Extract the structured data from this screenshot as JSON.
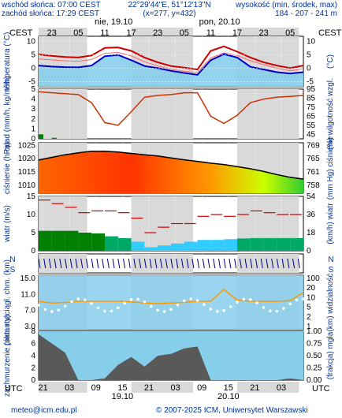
{
  "header": {
    "sunrise": "wschód słońca: 07:00 CEST",
    "sunset": "zachód słońca: 17:29 CEST",
    "coords": "22°29'44\"E, 51°12'13\"N",
    "grid": "(x=277, y=432)",
    "height_title": "wysokość (min, środek, max)",
    "height_values": "184 - 207 - 241 m"
  },
  "timezone_top": "CEST",
  "timezone_bottom": "UTC",
  "days_top": [
    "nie, 19.10",
    "pon, 20.10"
  ],
  "hours_top": [
    "23",
    "05",
    "11",
    "17",
    "23",
    "05",
    "11",
    "17",
    "23",
    "05"
  ],
  "hours_bottom": [
    "21",
    "03",
    "09",
    "15",
    "21",
    "03",
    "09",
    "15",
    "21",
    "03"
  ],
  "days_bottom": [
    "19.10",
    "20.10"
  ],
  "footer": {
    "email": "meteo@icm.edu.pl",
    "copyright": "© 2007-2025 ICM, Uniwersytet Warszawski"
  },
  "colors": {
    "axis_blue": "#003399",
    "sky": "#87ceeb",
    "temp_red": "#cc0000",
    "humidity": "#cc3300",
    "wind_green": "#008000"
  },
  "chart_data": [
    {
      "type": "line",
      "ylabel": "temperatura (°C)",
      "ylabel_right": "(°C)",
      "yticks": [
        "10",
        "5",
        "0",
        "-5"
      ],
      "ylim": [
        -7,
        12
      ],
      "x": [
        0,
        3,
        6,
        9,
        12,
        15,
        18,
        21,
        24,
        27,
        30,
        33,
        36,
        39,
        42,
        45,
        48,
        51,
        54,
        57,
        60
      ],
      "series": [
        {
          "values": [
            5.2,
            4.6,
            4.2,
            4.0,
            4.8,
            7.6,
            7.8,
            6.5,
            4.0,
            2.2,
            0.8,
            0.2,
            -0.5,
            6.5,
            8.2,
            6.2,
            4.0,
            2.2,
            1.0,
            0.0,
            1.0
          ]
        },
        {
          "values": [
            3.5,
            3.1,
            2.8,
            2.6,
            3.3,
            5.6,
            5.9,
            4.6,
            2.4,
            0.8,
            -0.4,
            -1.2,
            -1.6,
            3.8,
            5.8,
            4.8,
            2.8,
            1.3,
            0.0,
            -1.0,
            -0.2
          ]
        },
        {
          "values": [
            1.0,
            0.6,
            0.4,
            0.3,
            1.0,
            4.5,
            5.0,
            3.0,
            0.8,
            0.0,
            -1.0,
            -1.8,
            -2.5,
            3.0,
            5.3,
            4.0,
            0.5,
            -0.5,
            -1.5,
            -2.0,
            -1.5
          ]
        }
      ]
    },
    {
      "type": "line",
      "ylabel": "opad (mm/h, kg/m²/h)",
      "ylabel_right": "(%) wilgotność wzgl.",
      "yticks": [
        "5",
        "4",
        "3",
        "2",
        "1",
        "0"
      ],
      "yticks_right": [
        "95",
        "85",
        "75",
        "65",
        "55",
        "45"
      ],
      "ylim": [
        0,
        5
      ],
      "ylim_right": [
        40,
        95
      ],
      "x": [
        0,
        3,
        6,
        9,
        12,
        15,
        18,
        21,
        24,
        27,
        30,
        33,
        36,
        39,
        42,
        45,
        48,
        51,
        54,
        57,
        60
      ],
      "series": [
        {
          "name": "precipitation",
          "values": [
            0.45,
            0.1,
            0,
            0,
            0,
            0,
            0,
            0,
            0,
            0,
            0,
            0,
            0,
            0,
            0,
            0,
            0,
            0,
            0,
            0,
            0
          ]
        },
        {
          "name": "humidity",
          "values": [
            92,
            91,
            90,
            89,
            80,
            58,
            55,
            70,
            86,
            88,
            89,
            91,
            91,
            65,
            57,
            66,
            80,
            84,
            86,
            87,
            88
          ]
        }
      ]
    },
    {
      "type": "line",
      "ylabel": "ciśnienie (hPa)",
      "ylabel_right": "(mm Hg) ciśnienie",
      "yticks": [
        "1025",
        "1020",
        "1015",
        "1010"
      ],
      "yticks_right": [
        "769",
        "765",
        "761",
        "758"
      ],
      "ylim": [
        1007,
        1026
      ],
      "x": [
        0,
        3,
        6,
        9,
        12,
        15,
        18,
        21,
        24,
        27,
        30,
        33,
        36,
        39,
        42,
        45,
        48,
        51,
        54,
        57,
        60
      ],
      "values": [
        1019.5,
        1020.5,
        1021.5,
        1022.2,
        1022.8,
        1022.8,
        1022.5,
        1022.0,
        1021.5,
        1021.0,
        1020.3,
        1019.6,
        1019.0,
        1018.3,
        1017.8,
        1017.0,
        1016.2,
        1015.2,
        1014.0,
        1013.0,
        1012.3
      ]
    },
    {
      "type": "line",
      "ylabel": "wiatr (m/s)",
      "ylabel_right": "(km/h) wiatr",
      "yticks": [
        "15",
        "10",
        "5",
        "0"
      ],
      "yticks_right": [
        "54",
        "36",
        "18",
        "0"
      ],
      "ylim": [
        0,
        15
      ],
      "x": [
        0,
        3,
        6,
        9,
        12,
        15,
        18,
        21,
        24,
        27,
        30,
        33,
        36,
        39,
        42,
        45,
        48,
        51,
        54,
        57,
        60
      ],
      "series": [
        {
          "name": "wind speed",
          "values": [
            5.5,
            5.5,
            5.5,
            5.0,
            4.8,
            4.0,
            3.5,
            2.5,
            1.0,
            1.5,
            2.0,
            2.5,
            3.0,
            3.0,
            3.2,
            3.4,
            3.5,
            3.5,
            3.5,
            3.5,
            3.5
          ]
        },
        {
          "name": "gusts",
          "values": [
            14.0,
            13.0,
            12.0,
            10.5,
            11.0,
            11.0,
            10.5,
            9.0,
            5.0,
            6.5,
            7.5,
            7.5,
            9.5,
            10.0,
            9.5,
            10.0,
            11.0,
            10.5,
            10.0,
            10.0,
            10.0
          ]
        }
      ]
    },
    {
      "type": "line",
      "ylabel": "pion. rozciągł. chm. (km)",
      "ylabel_right": "(km) widzialność",
      "yticks": [
        "15.0",
        "11.0",
        "7.0",
        "3.0"
      ],
      "yticks_right": [
        "100",
        "20",
        "10",
        "5",
        "2",
        "1"
      ],
      "x": [
        0,
        3,
        6,
        9,
        12,
        15,
        18,
        21,
        24,
        27,
        30,
        33,
        36,
        39,
        42,
        45,
        48,
        51,
        54,
        57,
        60
      ],
      "series": [
        {
          "name": "visibility",
          "values": [
            20,
            17,
            18,
            20,
            20,
            20,
            20,
            19,
            17,
            16,
            17,
            18,
            20,
            20,
            40,
            22,
            20,
            20,
            20,
            21,
            35
          ]
        }
      ]
    },
    {
      "type": "area",
      "ylabel": "zachmurzenie (oktanty)",
      "ylabel_right": "(frakcja) mgła",
      "yticks": [
        "8",
        "6",
        "4",
        "2",
        "0"
      ],
      "yticks_right": [
        "1.00",
        "0.75",
        "0.50",
        "0.25",
        "0.00"
      ],
      "ylim": [
        0,
        8
      ],
      "x": [
        0,
        3,
        6,
        9,
        12,
        15,
        18,
        21,
        24,
        27,
        30,
        33,
        36,
        39,
        42,
        45,
        48,
        51,
        54,
        57,
        60
      ],
      "series": [
        {
          "name": "clouds",
          "values": [
            7.5,
            6.0,
            4.5,
            0,
            0,
            0.3,
            2.5,
            3.8,
            2.2,
            4.0,
            4.3,
            5.2,
            5.5,
            0,
            0,
            0,
            0,
            0,
            0,
            0.3,
            0
          ]
        }
      ]
    }
  ]
}
